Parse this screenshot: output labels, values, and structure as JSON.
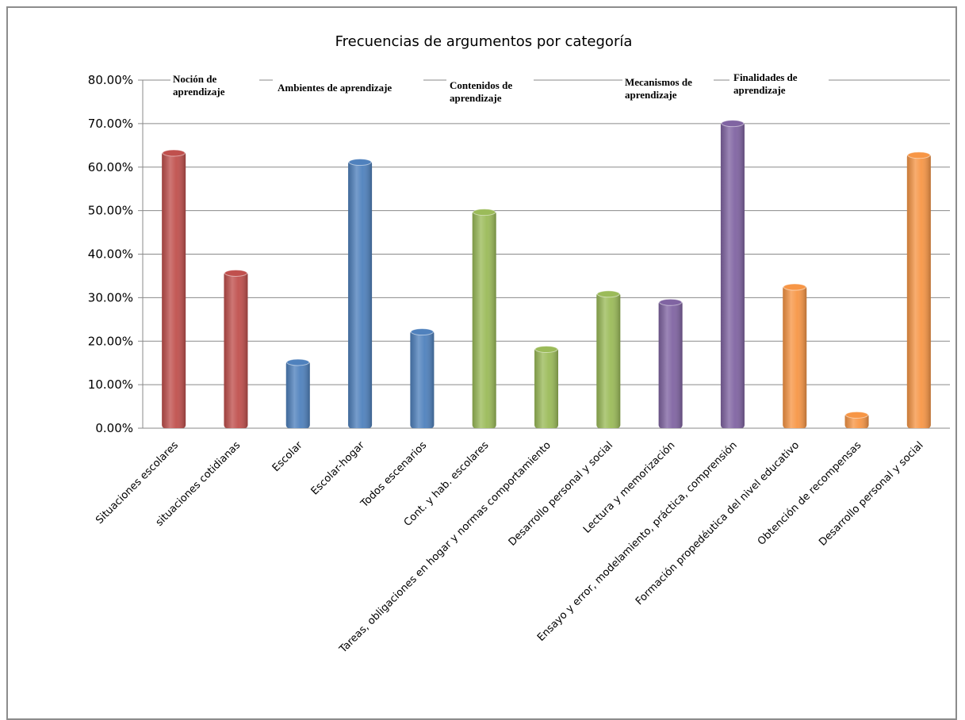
{
  "chart_data": {
    "type": "bar",
    "title": "Frecuencias de argumentos por categoría",
    "xlabel": "",
    "ylabel": "",
    "ylim": [
      0,
      80
    ],
    "y_ticks": [
      "0.00%",
      "10.00%",
      "20.00%",
      "30.00%",
      "40.00%",
      "50.00%",
      "60.00%",
      "70.00%",
      "80.00%"
    ],
    "grid": true,
    "categories": [
      "Situaciones escolares",
      "situaciones cotidianas",
      "Escolar",
      "Escolar-hogar",
      "Todos escenarios",
      "Cont. y hab. escolares",
      "Tareas, obligaciones en hogar y normas comportamiento",
      "Desarrollo personal y social",
      "Lectura y memorización",
      "Ensayo y error, modelamiento, práctica, comprensión",
      "Formación propedéutica del nivel educativo",
      "Obtención de recompensas",
      "Desarrollo personal y social"
    ],
    "values": [
      63.6,
      36.0,
      15.5,
      61.5,
      22.5,
      50.0,
      18.5,
      31.2,
      29.3,
      70.4,
      32.8,
      3.4,
      63.1
    ],
    "colors": [
      "#c0504d",
      "#c0504d",
      "#4f81bd",
      "#4f81bd",
      "#4f81bd",
      "#9bbb59",
      "#9bbb59",
      "#9bbb59",
      "#8064a2",
      "#8064a2",
      "#f79646",
      "#f79646",
      "#f79646"
    ],
    "groups": [
      {
        "label": "Noción de aprendizaje",
        "lines": [
          "Noción de",
          "aprendizaje"
        ]
      },
      {
        "label": "Ambientes de aprendizaje",
        "lines": [
          "Ambientes de aprendizaje"
        ]
      },
      {
        "label": "Contenidos de aprendizaje",
        "lines": [
          "Contenidos de",
          "aprendizaje"
        ]
      },
      {
        "label": "Mecanismos de aprendizaje",
        "lines": [
          "Mecanismos de",
          "aprendizaje"
        ]
      },
      {
        "label": "Finalidades de aprendizaje",
        "lines": [
          "Finalidades de",
          "aprendizaje"
        ]
      }
    ]
  }
}
